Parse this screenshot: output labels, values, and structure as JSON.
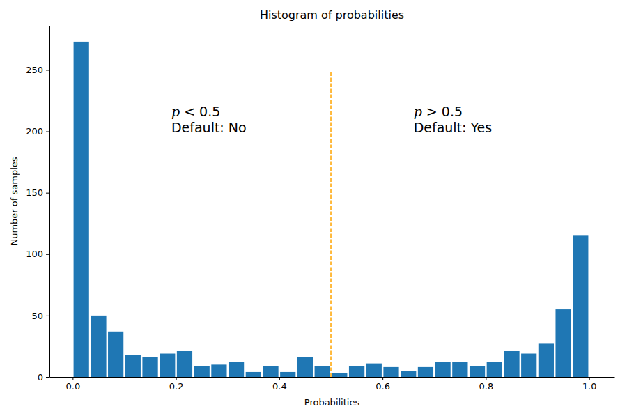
{
  "chart_data": {
    "type": "histogram",
    "title": "Histogram of probabilities",
    "x_label": "Probabilities",
    "y_label": "Number of samples",
    "bins": [
      0,
      0.0333,
      0.0667,
      0.1,
      0.1333,
      0.1667,
      0.2,
      0.2333,
      0.2667,
      0.3,
      0.3333,
      0.3667,
      0.4,
      0.4333,
      0.4667,
      0.5,
      0.5333,
      0.5667,
      0.6,
      0.6333,
      0.6667,
      0.7,
      0.7333,
      0.7667,
      0.8,
      0.8333,
      0.8667,
      0.9,
      0.9333,
      0.9667,
      1
    ],
    "values": [
      273,
      50,
      37,
      18,
      16,
      19,
      21,
      9,
      10,
      12,
      4,
      9,
      4,
      16,
      9,
      3,
      9,
      11,
      8,
      5,
      8,
      12,
      12,
      9,
      12,
      21,
      19,
      27,
      55,
      115
    ],
    "color": "#1f77b4",
    "xlim": [
      -0.045,
      1.049
    ],
    "xticks": [
      {
        "value": 0,
        "label": "0.0"
      },
      {
        "value": 0.2,
        "label": "0.2"
      },
      {
        "value": 0.4,
        "label": "0.4"
      },
      {
        "value": 0.6,
        "label": "0.6"
      },
      {
        "value": 0.8,
        "label": "0.8"
      },
      {
        "value": 1,
        "label": "1.0"
      }
    ],
    "ylim": [
      0,
      286
    ],
    "yticks": [
      0,
      50,
      100,
      150,
      200,
      250
    ],
    "vline": {
      "x": 0.5,
      "y_end": 250,
      "color": "#ffa500",
      "line_style": "dashed"
    },
    "annotations": [
      {
        "lines": [
          "p < 0.5",
          "Default: No"
        ],
        "x": 0.191,
        "y": 199
      },
      {
        "lines": [
          "p > 0.5",
          "Default: Yes"
        ],
        "x": 0.66,
        "y": 199
      }
    ]
  }
}
